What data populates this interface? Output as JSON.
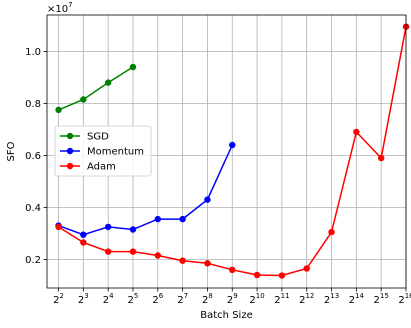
{
  "chart_data": {
    "type": "line",
    "xlabel": "Batch Size",
    "ylabel": "SFO",
    "y_multiplier": {
      "base": "×10",
      "exponent": "7"
    },
    "x_scale": "log2",
    "x_ticks": [
      {
        "base": "2",
        "exp": "2"
      },
      {
        "base": "2",
        "exp": "3"
      },
      {
        "base": "2",
        "exp": "4"
      },
      {
        "base": "2",
        "exp": "5"
      },
      {
        "base": "2",
        "exp": "6"
      },
      {
        "base": "2",
        "exp": "7"
      },
      {
        "base": "2",
        "exp": "8"
      },
      {
        "base": "2",
        "exp": "9"
      },
      {
        "base": "2",
        "exp": "10"
      },
      {
        "base": "2",
        "exp": "11"
      },
      {
        "base": "2",
        "exp": "12"
      },
      {
        "base": "2",
        "exp": "13"
      },
      {
        "base": "2",
        "exp": "14"
      },
      {
        "base": "2",
        "exp": "15"
      },
      {
        "base": "2",
        "exp": "16"
      }
    ],
    "x_tick_values": [
      4,
      8,
      16,
      32,
      64,
      128,
      256,
      512,
      1024,
      2048,
      4096,
      8192,
      16384,
      32768,
      65536
    ],
    "y_ticks": [
      "0.2",
      "0.4",
      "0.6",
      "0.8",
      "1.0"
    ],
    "y_tick_values": [
      0.2,
      0.4,
      0.6,
      0.8,
      1.0
    ],
    "xlim": [
      2.9,
      65536
    ],
    "ylim": [
      0.09,
      1.14
    ],
    "grid": true,
    "legend_position": "center-left",
    "series": [
      {
        "name": "SGD",
        "color": "#008000",
        "x": [
          4,
          8,
          16,
          32
        ],
        "y": [
          0.775,
          0.815,
          0.88,
          0.94
        ]
      },
      {
        "name": "Momentum",
        "color": "#0000ff",
        "x": [
          4,
          8,
          16,
          32,
          64,
          128,
          256,
          512
        ],
        "y": [
          0.33,
          0.295,
          0.325,
          0.315,
          0.355,
          0.355,
          0.43,
          0.64
        ]
      },
      {
        "name": "Adam",
        "color": "#ff0000",
        "x": [
          4,
          8,
          16,
          32,
          64,
          128,
          256,
          512,
          1024,
          2048,
          4096,
          8192,
          16384,
          32768,
          65536
        ],
        "y": [
          0.325,
          0.265,
          0.23,
          0.23,
          0.215,
          0.195,
          0.185,
          0.16,
          0.14,
          0.138,
          0.165,
          0.305,
          0.69,
          0.59,
          1.095
        ]
      }
    ]
  }
}
